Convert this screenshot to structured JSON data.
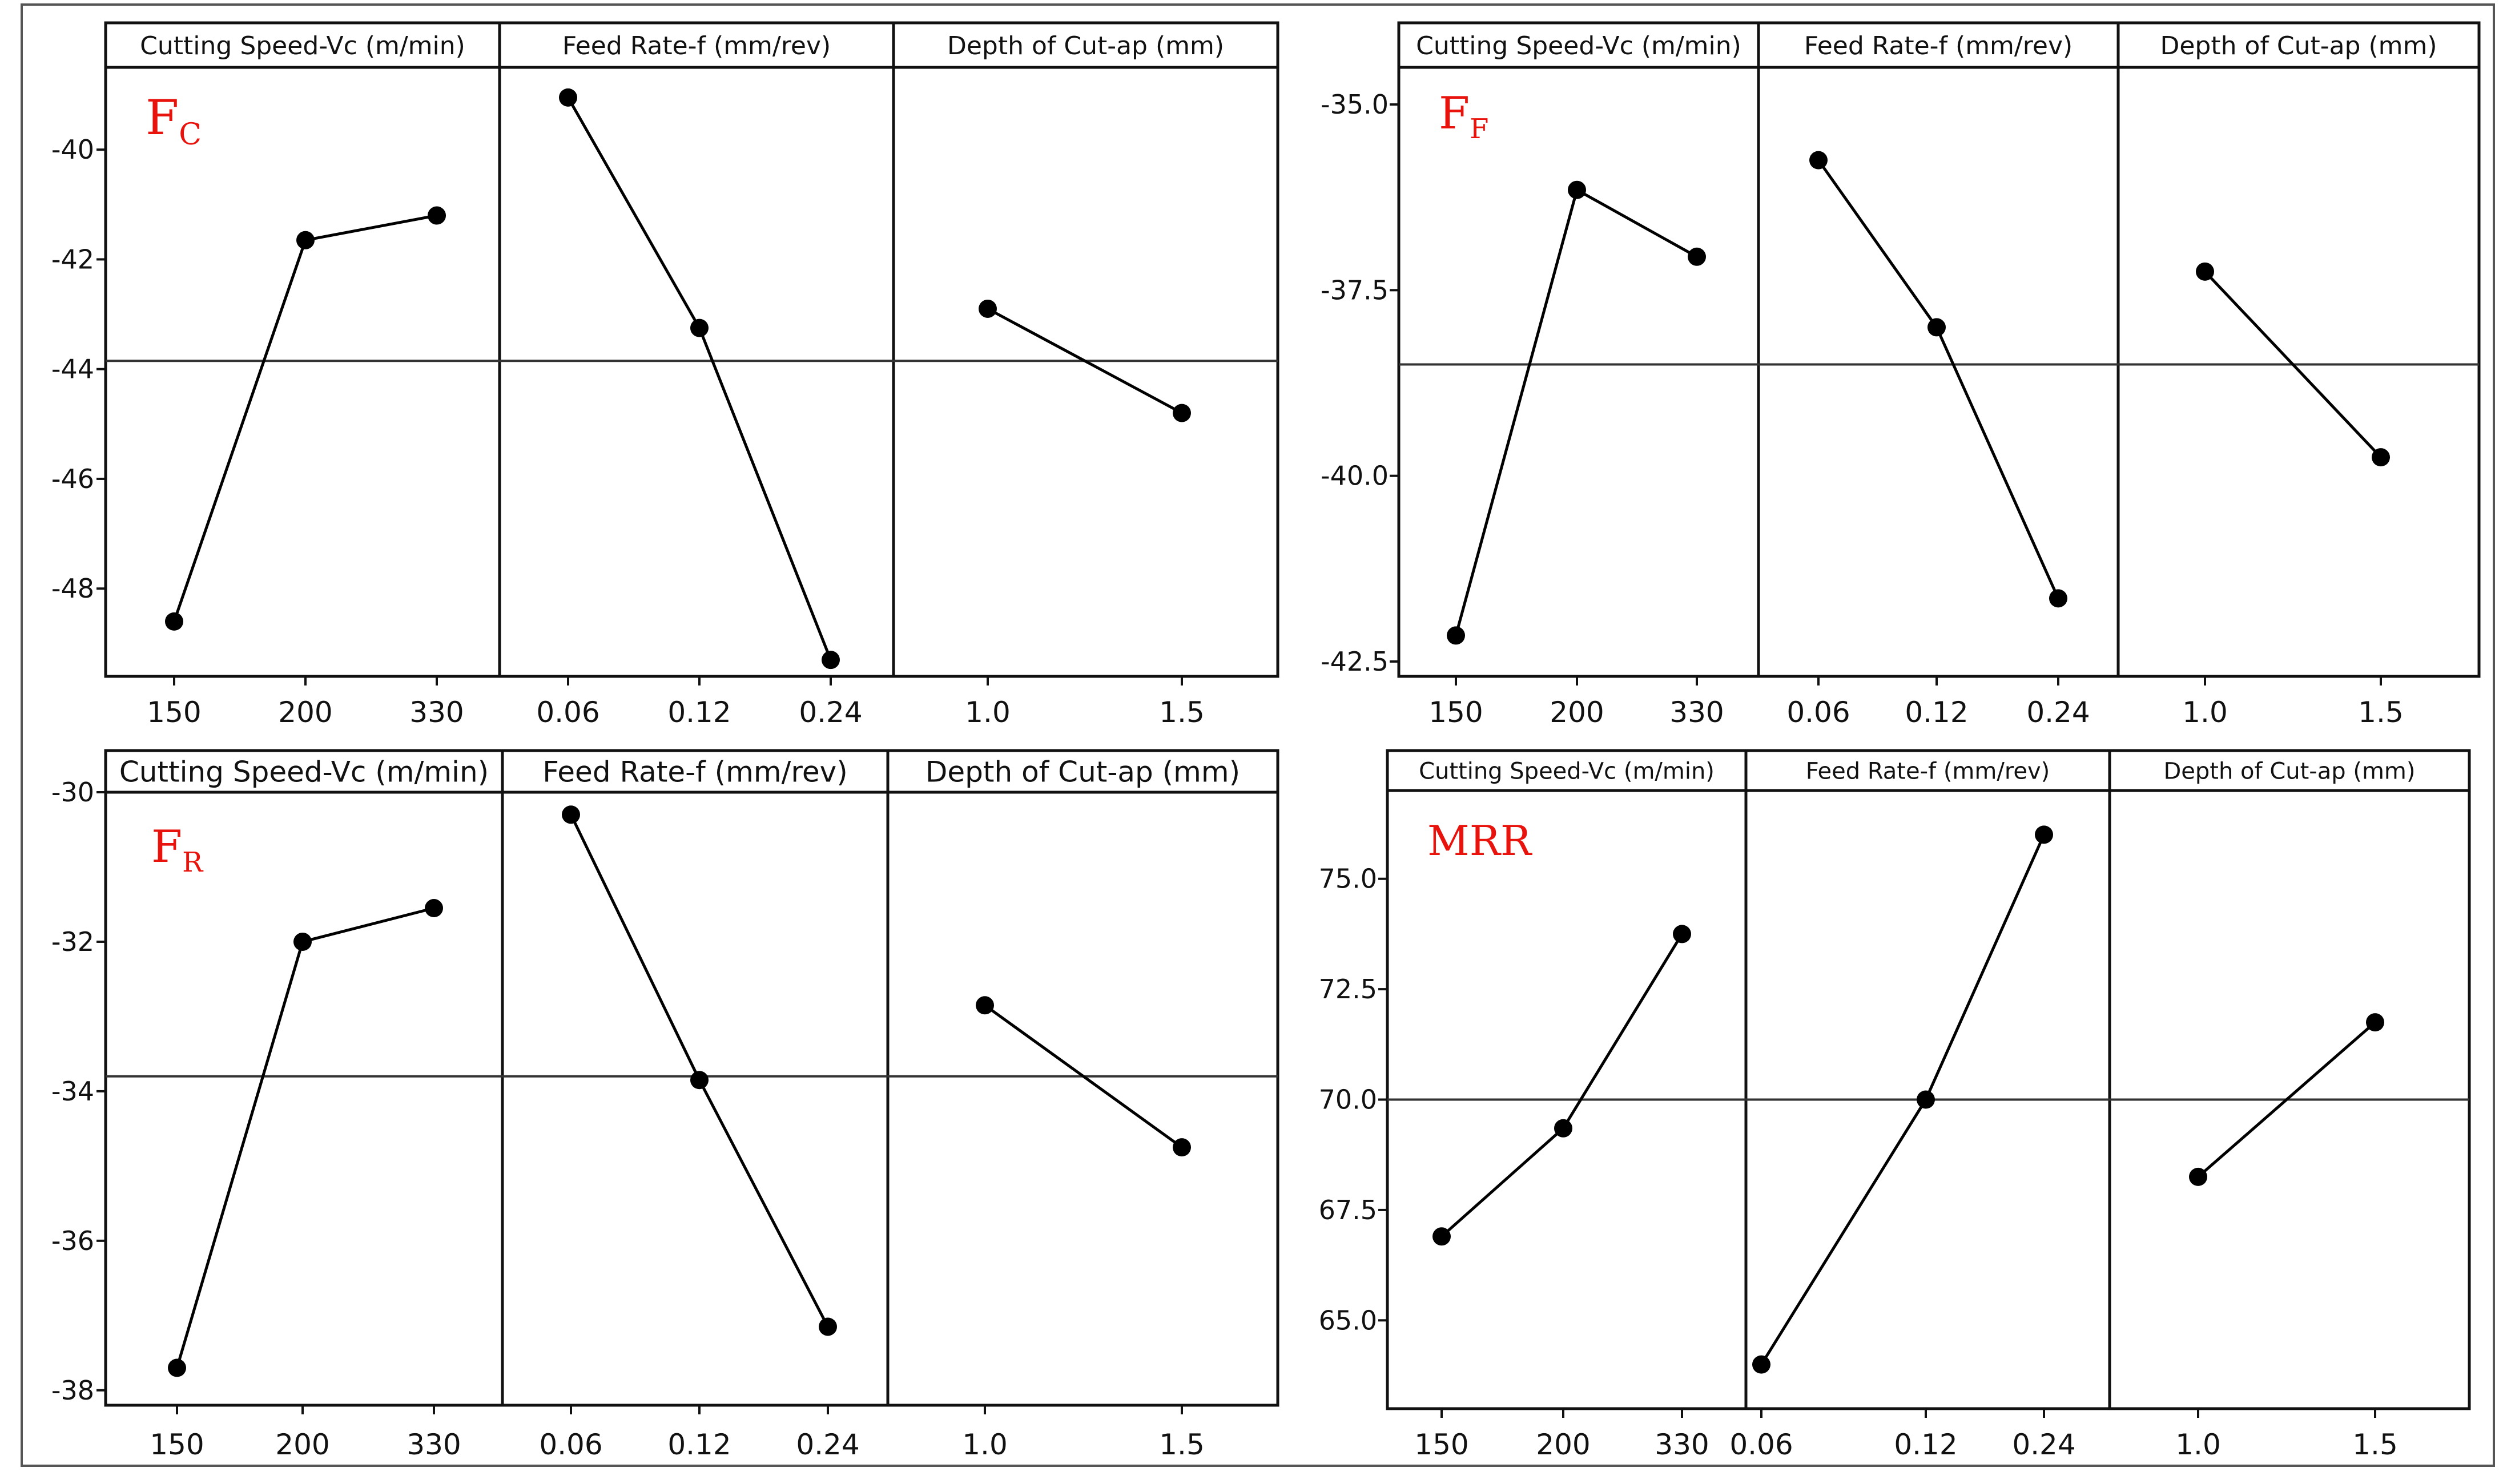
{
  "chart_data": [
    {
      "type": "line",
      "panel_label": "F",
      "panel_label_sub": "C",
      "ylim": [
        -49.6,
        -38.5
      ],
      "yticks": [
        -48,
        -46,
        -44,
        -42,
        -40
      ],
      "grand_mean": -43.85,
      "factors": [
        {
          "name": "Cutting Speed-Vc (m/min)",
          "levels": [
            "150",
            "200",
            "330"
          ],
          "values": [
            -48.6,
            -41.65,
            -41.2
          ]
        },
        {
          "name": "Feed Rate-f (mm/rev)",
          "levels": [
            "0.06",
            "0.12",
            "0.24"
          ],
          "values": [
            -39.05,
            -43.25,
            -49.3
          ]
        },
        {
          "name": "Depth of Cut-ap (mm)",
          "levels": [
            "1.0",
            "1.5"
          ],
          "values": [
            -42.9,
            -44.8
          ]
        }
      ]
    },
    {
      "type": "line",
      "panel_label": "F",
      "panel_label_sub": "F",
      "ylim": [
        -42.7,
        -34.5
      ],
      "yticks": [
        -42.5,
        -40.0,
        -37.5,
        -35.0
      ],
      "grand_mean": -38.5,
      "factors": [
        {
          "name": "Cutting Speed-Vc (m/min)",
          "levels": [
            "150",
            "200",
            "330"
          ],
          "values": [
            -42.15,
            -36.15,
            -37.05
          ]
        },
        {
          "name": "Feed Rate-f (mm/rev)",
          "levels": [
            "0.06",
            "0.12",
            "0.24"
          ],
          "values": [
            -35.75,
            -38.0,
            -41.65
          ]
        },
        {
          "name": "Depth of Cut-ap (mm)",
          "levels": [
            "1.0",
            "1.5"
          ],
          "values": [
            -37.25,
            -39.75
          ]
        }
      ]
    },
    {
      "type": "line",
      "panel_label": "F",
      "panel_label_sub": "R",
      "ylim": [
        -38.2,
        -30.0
      ],
      "yticks": [
        -38,
        -36,
        -34,
        -32,
        -30
      ],
      "grand_mean": -33.8,
      "factors": [
        {
          "name": "Cutting Speed-Vc (m/min)",
          "levels": [
            "150",
            "200",
            "330"
          ],
          "values": [
            -37.7,
            -32.0,
            -31.55
          ]
        },
        {
          "name": "Feed Rate-f (mm/rev)",
          "levels": [
            "0.06",
            "0.12",
            "0.24"
          ],
          "values": [
            -30.3,
            -33.85,
            -37.15
          ]
        },
        {
          "name": "Depth of Cut-ap (mm)",
          "levels": [
            "1.0",
            "1.5"
          ],
          "values": [
            -32.85,
            -34.75
          ]
        }
      ]
    },
    {
      "type": "line",
      "panel_label": "MRR",
      "panel_label_sub": "",
      "ylim": [
        63.0,
        77.0
      ],
      "yticks": [
        65.0,
        67.5,
        70.0,
        72.5,
        75.0
      ],
      "grand_mean": 70.0,
      "factors": [
        {
          "name": "Cutting Speed-Vc (m/min)",
          "levels": [
            "150",
            "200",
            "330"
          ],
          "values": [
            66.9,
            69.35,
            73.75
          ]
        },
        {
          "name": "Feed Rate-f (mm/rev)",
          "levels": [
            "0.06",
            "0.12",
            "0.24"
          ],
          "values": [
            64.0,
            70.0,
            76.0
          ]
        },
        {
          "name": "Depth of Cut-ap (mm)",
          "levels": [
            "1.0",
            "1.5"
          ],
          "values": [
            68.25,
            71.75
          ]
        }
      ]
    }
  ],
  "colors": {
    "panel_label": "#e8130c",
    "line": "#000000",
    "frame": "#111111",
    "mean_line": "#333333"
  }
}
